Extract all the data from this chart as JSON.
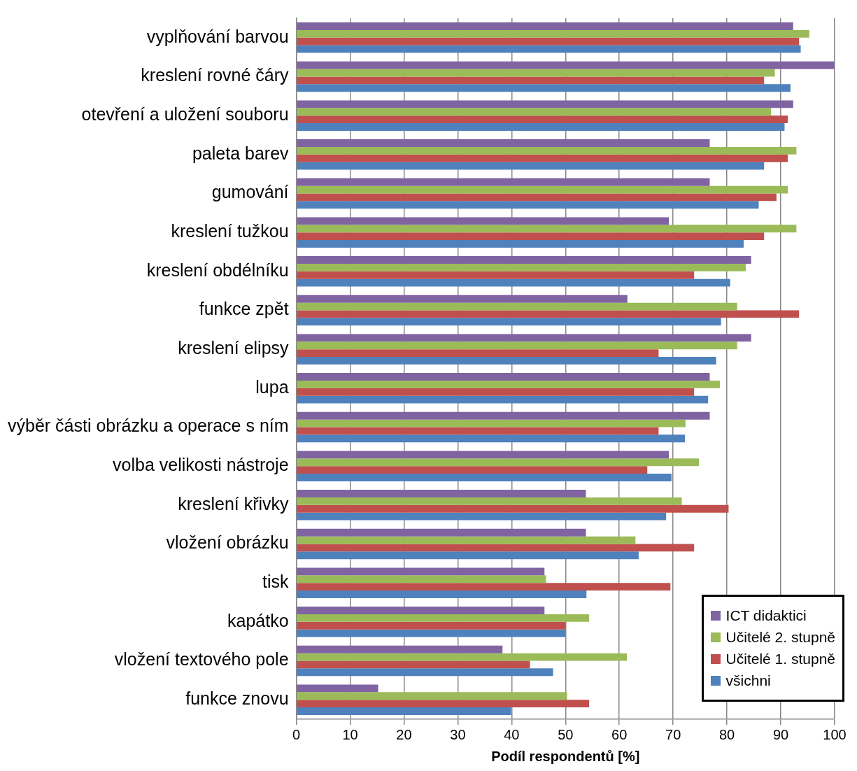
{
  "chart_data": {
    "type": "bar",
    "orientation": "horizontal",
    "xlabel": "Podíl respondentů [%]",
    "categories": [
      "vyplňování barvou",
      "kreslení rovné čáry",
      "otevření a uložení souboru",
      "paleta barev",
      "gumování",
      "kreslení tužkou",
      "kreslení obdélníku",
      "funkce zpět",
      "kreslení elipsy",
      "lupa",
      "výběr části obrázku a operace s ním",
      "volba velikosti nástroje",
      "kreslení křivky",
      "vložení obrázku",
      "tisk",
      "kapátko",
      "vložení textového pole",
      "funkce znovu"
    ],
    "series": [
      {
        "name": "ICT didaktici",
        "color": "#8064a2",
        "values": [
          92.3,
          100,
          92.3,
          76.8,
          76.8,
          69.2,
          84.5,
          61.5,
          84.5,
          76.8,
          76.8,
          69.2,
          53.8,
          53.8,
          46.1,
          46.1,
          38.3,
          15.2
        ]
      },
      {
        "name": "Učitelé 2. stupně",
        "color": "#9bbb59",
        "values": [
          95.3,
          88.9,
          88.2,
          92.9,
          91.3,
          92.9,
          83.5,
          81.9,
          81.9,
          78.7,
          72.3,
          74.8,
          71.6,
          63.0,
          46.4,
          54.4,
          61.4,
          50.3
        ]
      },
      {
        "name": "Učitelé 1. stupně",
        "color": "#c0504d",
        "values": [
          93.4,
          86.9,
          91.3,
          91.3,
          89.2,
          86.9,
          73.9,
          93.4,
          67.3,
          73.9,
          67.3,
          65.2,
          80.3,
          73.9,
          69.5,
          50.0,
          43.4,
          54.4
        ]
      },
      {
        "name": "všichni",
        "color": "#4f81bd",
        "values": [
          93.7,
          91.8,
          90.7,
          86.9,
          85.9,
          83.1,
          80.6,
          78.9,
          78.0,
          76.5,
          72.2,
          69.7,
          68.7,
          63.6,
          53.9,
          50.0,
          47.7,
          39.9
        ]
      }
    ],
    "xlim": [
      0,
      100
    ],
    "xticks": [
      0,
      10,
      20,
      30,
      40,
      50,
      60,
      70,
      80,
      90,
      100
    ],
    "grid": "x",
    "legend": "bottom right"
  }
}
